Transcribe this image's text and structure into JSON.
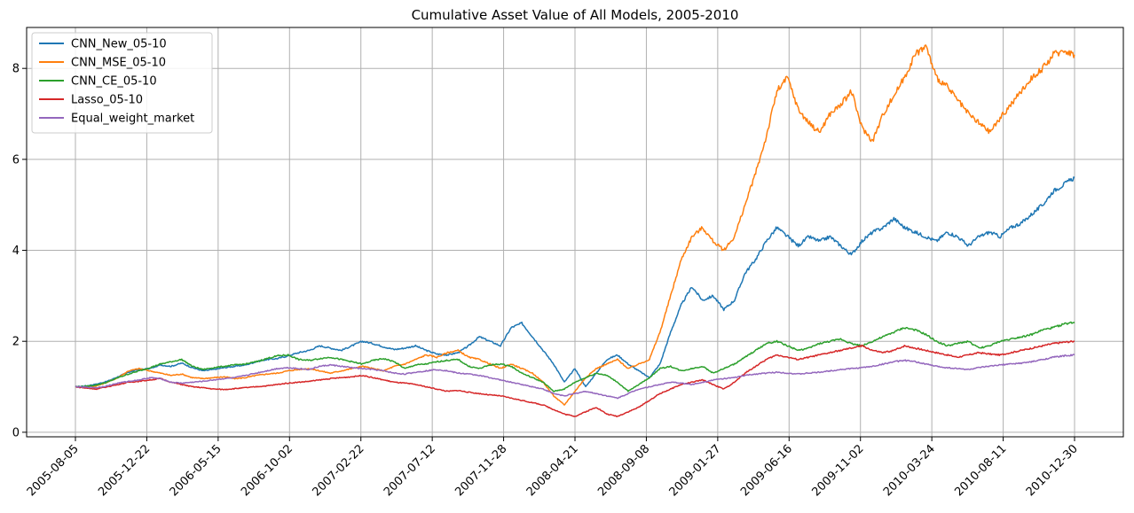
{
  "chart_data": {
    "type": "line",
    "title": "Cumulative Asset Value of All Models, 2005-2010",
    "xlabel": "",
    "ylabel": "",
    "grid": true,
    "legend_position": "upper-left",
    "x_ticks": [
      "2005-08-05",
      "2005-12-22",
      "2006-05-15",
      "2006-10-02",
      "2007-02-22",
      "2007-07-12",
      "2007-11-28",
      "2008-04-21",
      "2008-09-08",
      "2009-01-27",
      "2009-06-16",
      "2009-11-02",
      "2010-03-24",
      "2010-08-11",
      "2010-12-30"
    ],
    "y_ticks": [
      0,
      2,
      4,
      6,
      8
    ],
    "ylim": [
      -0.1,
      8.9
    ],
    "series": [
      {
        "name": "CNN_New_05-10",
        "color": "#1f77b4",
        "values": [
          1.0,
          1.02,
          1.06,
          1.12,
          1.22,
          1.32,
          1.38,
          1.4,
          1.48,
          1.45,
          1.52,
          1.42,
          1.35,
          1.38,
          1.42,
          1.45,
          1.48,
          1.55,
          1.6,
          1.62,
          1.68,
          1.75,
          1.8,
          1.9,
          1.85,
          1.8,
          1.9,
          2.0,
          1.95,
          1.88,
          1.82,
          1.85,
          1.9,
          1.8,
          1.72,
          1.7,
          1.75,
          1.9,
          2.1,
          2.0,
          1.9,
          2.3,
          2.4,
          2.1,
          1.8,
          1.5,
          1.1,
          1.4,
          1.0,
          1.3,
          1.6,
          1.7,
          1.5,
          1.35,
          1.2,
          1.5,
          2.2,
          2.8,
          3.2,
          2.9,
          3.0,
          2.7,
          2.9,
          3.5,
          3.8,
          4.2,
          4.5,
          4.3,
          4.1,
          4.3,
          4.2,
          4.3,
          4.1,
          3.9,
          4.2,
          4.4,
          4.5,
          4.7,
          4.5,
          4.4,
          4.3,
          4.2,
          4.4,
          4.3,
          4.1,
          4.3,
          4.4,
          4.3,
          4.5,
          4.6,
          4.8,
          5.0,
          5.3,
          5.45,
          5.6
        ]
      },
      {
        "name": "CNN_MSE_05-10",
        "color": "#ff7f0e",
        "values": [
          1.0,
          0.99,
          1.02,
          1.1,
          1.2,
          1.35,
          1.4,
          1.35,
          1.3,
          1.25,
          1.28,
          1.2,
          1.18,
          1.2,
          1.22,
          1.18,
          1.2,
          1.25,
          1.28,
          1.3,
          1.35,
          1.38,
          1.4,
          1.35,
          1.3,
          1.35,
          1.4,
          1.45,
          1.4,
          1.35,
          1.45,
          1.5,
          1.6,
          1.7,
          1.65,
          1.75,
          1.8,
          1.65,
          1.6,
          1.5,
          1.4,
          1.5,
          1.4,
          1.3,
          1.1,
          0.8,
          0.6,
          0.9,
          1.2,
          1.4,
          1.5,
          1.6,
          1.4,
          1.5,
          1.6,
          2.2,
          3.0,
          3.8,
          4.3,
          4.5,
          4.2,
          4.0,
          4.3,
          5.0,
          5.7,
          6.5,
          7.5,
          7.8,
          7.1,
          6.8,
          6.6,
          7.0,
          7.2,
          7.5,
          6.7,
          6.4,
          7.0,
          7.4,
          7.8,
          8.3,
          8.5,
          7.8,
          7.6,
          7.3,
          7.0,
          6.8,
          6.6,
          6.9,
          7.2,
          7.5,
          7.8,
          8.0,
          8.3,
          8.4,
          8.3
        ]
      },
      {
        "name": "CNN_CE_05-10",
        "color": "#2ca02c",
        "values": [
          1.0,
          1.01,
          1.04,
          1.1,
          1.2,
          1.28,
          1.35,
          1.42,
          1.5,
          1.55,
          1.6,
          1.45,
          1.38,
          1.42,
          1.45,
          1.48,
          1.5,
          1.55,
          1.62,
          1.68,
          1.7,
          1.6,
          1.58,
          1.62,
          1.65,
          1.6,
          1.55,
          1.5,
          1.58,
          1.62,
          1.55,
          1.4,
          1.48,
          1.5,
          1.55,
          1.58,
          1.6,
          1.45,
          1.4,
          1.48,
          1.5,
          1.45,
          1.3,
          1.2,
          1.1,
          0.9,
          0.95,
          1.1,
          1.2,
          1.3,
          1.25,
          1.1,
          0.9,
          1.05,
          1.2,
          1.4,
          1.45,
          1.35,
          1.4,
          1.45,
          1.3,
          1.4,
          1.5,
          1.65,
          1.8,
          1.95,
          2.0,
          1.9,
          1.8,
          1.85,
          1.95,
          2.0,
          2.05,
          1.95,
          1.9,
          2.0,
          2.1,
          2.2,
          2.3,
          2.25,
          2.15,
          2.0,
          1.9,
          1.95,
          2.0,
          1.85,
          1.9,
          2.0,
          2.05,
          2.1,
          2.15,
          2.25,
          2.3,
          2.38,
          2.42
        ]
      },
      {
        "name": "Lasso_05-10",
        "color": "#d62728",
        "values": [
          1.0,
          0.97,
          0.95,
          1.0,
          1.05,
          1.1,
          1.12,
          1.15,
          1.18,
          1.1,
          1.05,
          1.0,
          0.98,
          0.95,
          0.94,
          0.96,
          0.98,
          1.0,
          1.02,
          1.05,
          1.08,
          1.1,
          1.12,
          1.15,
          1.18,
          1.2,
          1.22,
          1.25,
          1.2,
          1.15,
          1.1,
          1.08,
          1.05,
          1.0,
          0.95,
          0.9,
          0.92,
          0.88,
          0.85,
          0.82,
          0.8,
          0.75,
          0.7,
          0.65,
          0.6,
          0.5,
          0.4,
          0.35,
          0.45,
          0.55,
          0.4,
          0.35,
          0.45,
          0.55,
          0.7,
          0.85,
          0.95,
          1.05,
          1.1,
          1.15,
          1.05,
          0.95,
          1.1,
          1.3,
          1.45,
          1.6,
          1.7,
          1.65,
          1.6,
          1.65,
          1.7,
          1.75,
          1.8,
          1.85,
          1.9,
          1.8,
          1.75,
          1.8,
          1.9,
          1.85,
          1.8,
          1.75,
          1.7,
          1.65,
          1.7,
          1.75,
          1.72,
          1.7,
          1.75,
          1.8,
          1.85,
          1.9,
          1.95,
          1.98,
          2.0
        ]
      },
      {
        "name": "Equal_weight_market",
        "color": "#9467bd",
        "values": [
          1.0,
          0.99,
          0.98,
          1.02,
          1.08,
          1.12,
          1.15,
          1.2,
          1.18,
          1.1,
          1.08,
          1.1,
          1.12,
          1.15,
          1.18,
          1.2,
          1.25,
          1.3,
          1.35,
          1.4,
          1.42,
          1.4,
          1.38,
          1.45,
          1.48,
          1.45,
          1.42,
          1.4,
          1.38,
          1.35,
          1.3,
          1.28,
          1.32,
          1.35,
          1.38,
          1.35,
          1.3,
          1.28,
          1.25,
          1.2,
          1.15,
          1.1,
          1.05,
          1.0,
          0.95,
          0.85,
          0.8,
          0.85,
          0.9,
          0.85,
          0.8,
          0.75,
          0.85,
          0.95,
          1.0,
          1.05,
          1.1,
          1.08,
          1.05,
          1.1,
          1.15,
          1.18,
          1.2,
          1.25,
          1.28,
          1.3,
          1.32,
          1.3,
          1.28,
          1.3,
          1.32,
          1.35,
          1.38,
          1.4,
          1.42,
          1.45,
          1.5,
          1.55,
          1.58,
          1.55,
          1.5,
          1.45,
          1.42,
          1.4,
          1.38,
          1.42,
          1.45,
          1.48,
          1.5,
          1.52,
          1.55,
          1.6,
          1.65,
          1.68,
          1.7
        ]
      }
    ]
  }
}
